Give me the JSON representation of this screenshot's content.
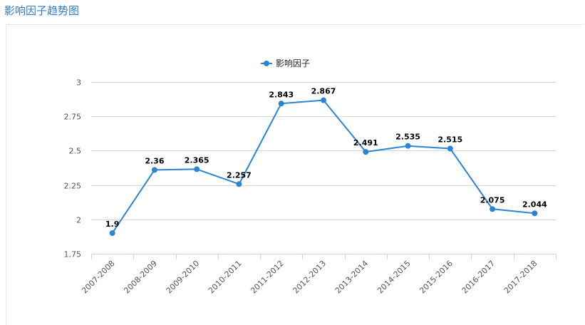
{
  "header": {
    "title": "影响因子趋势图"
  },
  "chart_data": {
    "type": "line",
    "title": "",
    "xlabel": "",
    "ylabel": "",
    "categories": [
      "2007-2008",
      "2008-2009",
      "2009-2010",
      "2010-2011",
      "2011-2012",
      "2012-2013",
      "2013-2014",
      "2014-2015",
      "2015-2016",
      "2016-2017",
      "2017-2018"
    ],
    "series": [
      {
        "name": "影响因子",
        "values": [
          1.9,
          2.36,
          2.365,
          2.257,
          2.843,
          2.867,
          2.491,
          2.535,
          2.515,
          2.075,
          2.044
        ]
      }
    ],
    "data_labels": [
      "1.9",
      "2.36",
      "2.365",
      "2.257",
      "2.843",
      "2.867",
      "2.491",
      "2.535",
      "2.515",
      "2.075",
      "2.044"
    ],
    "yticks": [
      1.75,
      2,
      2.25,
      2.5,
      2.75,
      3
    ],
    "ytick_labels": [
      "1.75",
      "2",
      "2.25",
      "2.5",
      "2.75",
      "3"
    ],
    "ylim": [
      1.75,
      3
    ],
    "grid": true,
    "legend_position": "top-center",
    "colors": {
      "line": "#2b84d6",
      "grid": "#d9d9d9",
      "axis": "#ccd6eb"
    }
  }
}
